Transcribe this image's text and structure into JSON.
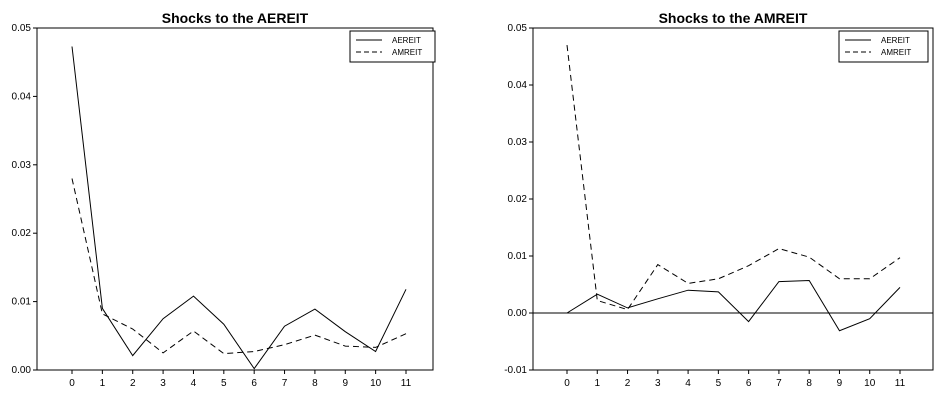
{
  "chart_data": [
    {
      "type": "line",
      "title": "Shocks to the AEREIT",
      "x": [
        0,
        1,
        2,
        3,
        4,
        5,
        6,
        7,
        8,
        9,
        10,
        11
      ],
      "xticks": [
        "0",
        "1",
        "2",
        "3",
        "4",
        "5",
        "6",
        "7",
        "8",
        "9",
        "10",
        "11"
      ],
      "ylim": [
        0,
        0.05
      ],
      "yticks": [
        "0.00",
        "0.01",
        "0.02",
        "0.03",
        "0.04",
        "0.05"
      ],
      "grid": false,
      "legend_position": "top-right",
      "series": [
        {
          "name": "AEREIT",
          "style": "solid",
          "values": [
            0.0473,
            0.009,
            0.0021,
            0.0075,
            0.0108,
            0.0067,
            0.0002,
            0.0064,
            0.0089,
            0.0056,
            0.0027,
            0.0118
          ]
        },
        {
          "name": "AMREIT",
          "style": "dashed",
          "values": [
            0.028,
            0.0082,
            0.006,
            0.0025,
            0.0057,
            0.0024,
            0.0027,
            0.0037,
            0.0051,
            0.0035,
            0.0033,
            0.0053
          ]
        }
      ]
    },
    {
      "type": "line",
      "title": "Shocks to the AMREIT",
      "x": [
        0,
        1,
        2,
        3,
        4,
        5,
        6,
        7,
        8,
        9,
        10,
        11
      ],
      "xticks": [
        "0",
        "1",
        "2",
        "3",
        "4",
        "5",
        "6",
        "7",
        "8",
        "9",
        "10",
        "11"
      ],
      "ylim": [
        -0.01,
        0.05
      ],
      "yticks": [
        "-0.01",
        "0.00",
        "0.01",
        "0.02",
        "0.03",
        "0.04",
        "0.05"
      ],
      "zero_line": true,
      "grid": false,
      "legend_position": "top-right",
      "series": [
        {
          "name": "AEREIT",
          "style": "solid",
          "values": [
            0.0,
            0.0033,
            0.0009,
            0.0025,
            0.004,
            0.0037,
            -0.0015,
            0.0055,
            0.0057,
            -0.0031,
            -0.001,
            0.0045
          ]
        },
        {
          "name": "AMREIT",
          "style": "dashed",
          "values": [
            0.047,
            0.0022,
            0.0006,
            0.0085,
            0.0052,
            0.006,
            0.0083,
            0.0113,
            0.0098,
            0.006,
            0.006,
            0.0097
          ]
        }
      ]
    }
  ]
}
